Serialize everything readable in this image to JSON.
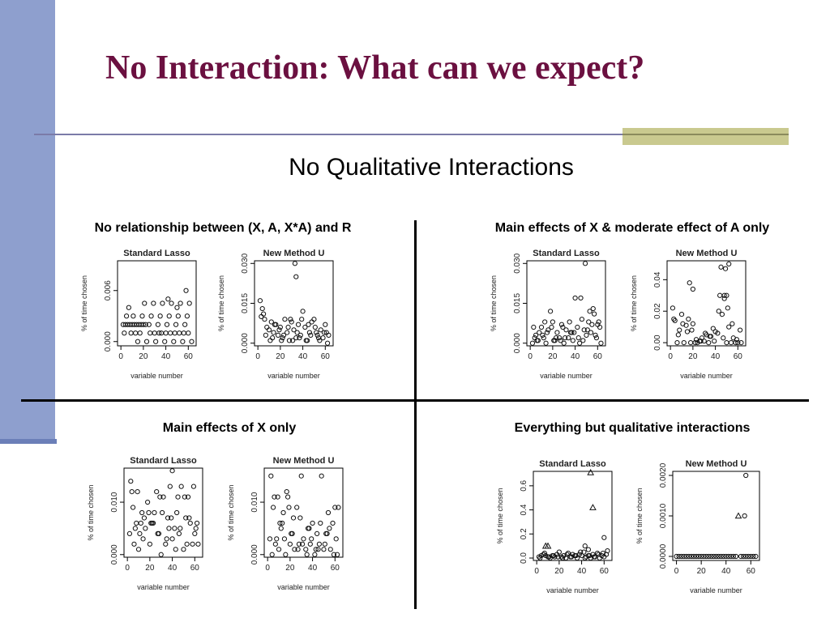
{
  "slide": {
    "title": "No Interaction: What can we expect?",
    "subtitle": "No Qualitative Interactions"
  },
  "colors": {
    "sidebar": "#8e9fce",
    "title": "#6b1040",
    "accent": "#c9c98f"
  },
  "quadrants": [
    {
      "title": "No relationship between (X, A, X*A) and R"
    },
    {
      "title": "Main effects of X & moderate effect of A only"
    },
    {
      "title": "Main effects of X only"
    },
    {
      "title": "Everything but qualitative interactions"
    }
  ],
  "chart_data": [
    {
      "type": "scatter",
      "title": "Standard Lasso",
      "xlabel": "variable number",
      "ylabel": "% of time chosen",
      "xlim": [
        -3,
        67
      ],
      "ylim": [
        -0.0005,
        0.0095
      ],
      "xticks": [
        0,
        20,
        40,
        60
      ],
      "yticks": [
        0.0,
        0.006
      ],
      "ytick_labels": [
        "0.000",
        "0.006"
      ],
      "x": [
        2,
        4,
        6,
        8,
        10,
        12,
        14,
        16,
        18,
        20,
        22,
        3,
        9,
        13,
        17,
        26,
        30,
        34,
        36,
        40,
        44,
        48,
        52,
        56,
        60,
        25,
        33,
        41,
        49,
        57,
        5,
        11,
        19,
        27,
        35,
        43,
        51,
        59,
        15,
        23,
        31,
        39,
        47,
        55,
        63,
        21,
        29,
        37,
        45,
        53,
        61,
        7,
        42,
        58,
        50
      ],
      "y": [
        0.002,
        0.002,
        0.002,
        0.002,
        0.002,
        0.002,
        0.002,
        0.002,
        0.002,
        0.002,
        0.002,
        0.001,
        0.001,
        0.001,
        0.001,
        0.001,
        0.001,
        0.001,
        0.001,
        0.001,
        0.001,
        0.001,
        0.001,
        0.001,
        0.001,
        0.002,
        0.002,
        0.002,
        0.002,
        0.002,
        0.003,
        0.003,
        0.003,
        0.003,
        0.003,
        0.003,
        0.003,
        0.003,
        0.0,
        0.0,
        0.0,
        0.0,
        0.0,
        0.0,
        0.0,
        0.0045,
        0.0045,
        0.0045,
        0.0045,
        0.0045,
        0.0045,
        0.004,
        0.005,
        0.006,
        0.004
      ]
    },
    {
      "type": "scatter",
      "title": "New Method U",
      "xlabel": "variable number",
      "ylabel": "% of time chosen",
      "xlim": [
        -3,
        67
      ],
      "ylim": [
        -0.001,
        0.031
      ],
      "xticks": [
        0,
        20,
        40,
        60
      ],
      "yticks": [
        0.0,
        0.015,
        0.03
      ],
      "ytick_labels": [
        "0.000",
        "0.015",
        "0.030"
      ],
      "x": [
        2,
        4,
        6,
        8,
        10,
        12,
        14,
        16,
        18,
        20,
        22,
        24,
        26,
        28,
        30,
        32,
        34,
        36,
        38,
        40,
        42,
        44,
        46,
        48,
        50,
        52,
        54,
        56,
        58,
        60,
        62,
        3,
        7,
        11,
        15,
        19,
        23,
        27,
        31,
        35,
        39,
        43,
        47,
        51,
        55,
        59,
        63,
        5,
        13,
        21,
        29,
        37,
        45,
        53,
        61,
        33,
        34
      ],
      "y": [
        0.016,
        0.013,
        0.009,
        0.006,
        0.005,
        0.008,
        0.004,
        0.007,
        0.003,
        0.006,
        0.002,
        0.009,
        0.004,
        0.001,
        0.008,
        0.005,
        0.002,
        0.007,
        0.003,
        0.012,
        0.006,
        0.001,
        0.004,
        0.008,
        0.009,
        0.004,
        0.002,
        0.005,
        0.002,
        0.007,
        0.0,
        0.01,
        0.003,
        0.001,
        0.007,
        0.005,
        0.003,
        0.006,
        0.001,
        0.004,
        0.009,
        0.001,
        0.003,
        0.006,
        0.001,
        0.004,
        0.003,
        0.011,
        0.002,
        0.001,
        0.009,
        0.002,
        0.007,
        0.003,
        0.004,
        0.03,
        0.025
      ]
    },
    {
      "type": "scatter",
      "title": "Standard Lasso",
      "xlabel": "variable number",
      "ylabel": "% of time chosen",
      "xlim": [
        -3,
        67
      ],
      "ylim": [
        -0.001,
        0.031
      ],
      "xticks": [
        0,
        20,
        40,
        60
      ],
      "yticks": [
        0.0,
        0.015,
        0.03
      ],
      "ytick_labels": [
        "0.000",
        "0.015",
        "0.030"
      ],
      "x": [
        2,
        4,
        6,
        8,
        10,
        12,
        14,
        16,
        18,
        20,
        22,
        24,
        26,
        28,
        30,
        32,
        34,
        36,
        38,
        40,
        42,
        44,
        46,
        48,
        50,
        52,
        54,
        56,
        58,
        60,
        62,
        3,
        7,
        11,
        15,
        19,
        23,
        27,
        31,
        35,
        39,
        43,
        47,
        51,
        55,
        59,
        63,
        5,
        13,
        21,
        29,
        37,
        45,
        53,
        61,
        49,
        57
      ],
      "y": [
        0.0,
        0.002,
        0.001,
        0.004,
        0.006,
        0.002,
        0.0,
        0.005,
        0.012,
        0.008,
        0.001,
        0.004,
        0.002,
        0.007,
        0.0,
        0.005,
        0.002,
        0.004,
        0.001,
        0.017,
        0.006,
        0.0,
        0.009,
        0.005,
        0.003,
        0.008,
        0.004,
        0.013,
        0.003,
        0.007,
        0.006,
        0.006,
        0.001,
        0.003,
        0.004,
        0.006,
        0.002,
        0.001,
        0.002,
        0.008,
        0.004,
        0.002,
        0.001,
        0.005,
        0.007,
        0.002,
        0.0,
        0.003,
        0.008,
        0.001,
        0.006,
        0.004,
        0.017,
        0.012,
        0.008,
        0.03,
        0.011
      ]
    },
    {
      "type": "scatter",
      "title": "New Method U",
      "xlabel": "variable number",
      "ylabel": "% of time chosen",
      "xlim": [
        -3,
        67
      ],
      "ylim": [
        -0.002,
        0.052
      ],
      "xticks": [
        0,
        20,
        40,
        60
      ],
      "yticks": [
        0.0,
        0.02,
        0.04
      ],
      "ytick_labels": [
        "0.00",
        "0.02",
        "0.04"
      ],
      "x": [
        2,
        4,
        6,
        8,
        10,
        12,
        14,
        16,
        18,
        20,
        22,
        24,
        26,
        28,
        30,
        32,
        34,
        36,
        38,
        40,
        42,
        44,
        46,
        48,
        50,
        52,
        54,
        56,
        58,
        60,
        62,
        3,
        7,
        11,
        15,
        19,
        23,
        27,
        31,
        35,
        39,
        43,
        47,
        51,
        55,
        59,
        63,
        17,
        20,
        45,
        49,
        52,
        48,
        50
      ],
      "y": [
        0.022,
        0.014,
        0.0,
        0.008,
        0.018,
        0.0,
        0.011,
        0.015,
        0.0,
        0.012,
        0.0,
        0.0,
        0.001,
        0.003,
        0.001,
        0.005,
        0.0,
        0.004,
        0.009,
        0.007,
        0.006,
        0.03,
        0.018,
        0.03,
        0.0,
        0.01,
        0.0,
        0.003,
        0.0,
        0.0,
        0.008,
        0.015,
        0.005,
        0.012,
        0.007,
        0.008,
        0.002,
        0.001,
        0.006,
        0.004,
        0.001,
        0.02,
        0.003,
        0.022,
        0.012,
        0.002,
        0.0,
        0.038,
        0.034,
        0.048,
        0.047,
        0.05,
        0.028,
        0.03
      ]
    },
    {
      "type": "scatter",
      "title": "Standard Lasso",
      "xlabel": "variable number",
      "ylabel": "% of time chosen",
      "xlim": [
        -3,
        67
      ],
      "ylim": [
        -0.0005,
        0.0165
      ],
      "xticks": [
        0,
        20,
        40,
        60
      ],
      "yticks": [
        0.0,
        0.01
      ],
      "ytick_labels": [
        "0.000",
        "0.010"
      ],
      "x": [
        2,
        4,
        6,
        8,
        10,
        12,
        14,
        16,
        18,
        20,
        22,
        24,
        26,
        28,
        30,
        32,
        34,
        36,
        38,
        40,
        42,
        44,
        46,
        48,
        50,
        52,
        54,
        56,
        58,
        60,
        62,
        3,
        7,
        11,
        15,
        19,
        23,
        27,
        31,
        35,
        39,
        43,
        47,
        51,
        55,
        59,
        63,
        5,
        9,
        13,
        21,
        29,
        37,
        45,
        53,
        61,
        40
      ],
      "y": [
        0.004,
        0.012,
        0.002,
        0.006,
        0.001,
        0.006,
        0.003,
        0.005,
        0.01,
        0.002,
        0.006,
        0.008,
        0.012,
        0.004,
        0.0,
        0.011,
        0.002,
        0.007,
        0.013,
        0.003,
        0.005,
        0.008,
        0.004,
        0.013,
        0.001,
        0.007,
        0.011,
        0.006,
        0.002,
        0.004,
        0.006,
        0.014,
        0.005,
        0.004,
        0.007,
        0.008,
        0.006,
        0.004,
        0.008,
        0.003,
        0.007,
        0.001,
        0.005,
        0.011,
        0.007,
        0.013,
        0.002,
        0.009,
        0.012,
        0.008,
        0.006,
        0.011,
        0.005,
        0.011,
        0.002,
        0.005,
        0.016
      ],
      "markers": "circle"
    },
    {
      "type": "scatter",
      "title": "New Method U",
      "xlabel": "variable number",
      "ylabel": "% of time chosen",
      "xlim": [
        -3,
        67
      ],
      "ylim": [
        -0.0005,
        0.0165
      ],
      "xticks": [
        0,
        20,
        40,
        60
      ],
      "yticks": [
        0.0,
        0.01
      ],
      "ytick_labels": [
        "0.000",
        "0.010"
      ],
      "x": [
        2,
        4,
        6,
        8,
        10,
        12,
        14,
        16,
        18,
        20,
        22,
        24,
        26,
        28,
        30,
        32,
        34,
        36,
        38,
        40,
        42,
        44,
        46,
        48,
        50,
        52,
        54,
        56,
        58,
        60,
        62,
        3,
        7,
        11,
        15,
        19,
        23,
        27,
        31,
        35,
        39,
        43,
        47,
        51,
        55,
        59,
        63,
        5,
        9,
        13,
        21,
        29,
        37,
        45,
        53,
        61,
        17
      ],
      "y": [
        0.003,
        0.0,
        0.011,
        0.003,
        0.001,
        0.005,
        0.008,
        0.0,
        0.011,
        0.002,
        0.004,
        0.001,
        0.009,
        0.002,
        0.015,
        0.003,
        0.001,
        0.005,
        0.002,
        0.006,
        0.0,
        0.004,
        0.002,
        0.015,
        0.001,
        0.004,
        0.008,
        0.001,
        0.006,
        0.009,
        0.0,
        0.015,
        0.002,
        0.006,
        0.003,
        0.009,
        0.007,
        0.001,
        0.002,
        0.0,
        0.003,
        0.001,
        0.006,
        0.002,
        0.005,
        0.0,
        0.009,
        0.009,
        0.011,
        0.006,
        0.004,
        0.007,
        0.005,
        0.001,
        0.004,
        0.003,
        0.012
      ]
    },
    {
      "type": "scatter",
      "title": "Standard Lasso",
      "xlabel": "variable number",
      "ylabel": "% of time chosen",
      "xlim": [
        -3,
        67
      ],
      "ylim": [
        -0.02,
        0.72
      ],
      "xticks": [
        0,
        20,
        40,
        60
      ],
      "yticks": [
        0.0,
        0.2,
        0.4,
        0.6
      ],
      "ytick_labels": [
        "0.0",
        "0.2",
        "0.4",
        "0.6"
      ],
      "x": [
        2,
        4,
        6,
        8,
        10,
        12,
        14,
        16,
        18,
        20,
        22,
        24,
        26,
        28,
        30,
        32,
        34,
        36,
        38,
        40,
        42,
        44,
        46,
        48,
        50,
        52,
        54,
        56,
        58,
        60,
        62,
        3,
        7,
        11,
        15,
        19,
        23,
        27,
        31,
        35,
        39,
        43,
        47,
        51,
        55,
        59,
        63,
        43,
        46,
        60
      ],
      "y": [
        0.01,
        0.02,
        0.03,
        0.02,
        0.01,
        0.0,
        0.02,
        0.01,
        0.03,
        0.05,
        0.01,
        0.02,
        0.0,
        0.04,
        0.01,
        0.03,
        0.02,
        0.0,
        0.03,
        0.02,
        0.05,
        0.01,
        0.02,
        0.0,
        0.03,
        0.01,
        0.04,
        0.0,
        0.02,
        0.01,
        0.03,
        0.0,
        0.04,
        0.01,
        0.02,
        0.01,
        0.0,
        0.03,
        0.01,
        0.02,
        0.05,
        0.0,
        0.02,
        0.01,
        0.03,
        0.04,
        0.06,
        0.1,
        0.07,
        0.17
      ],
      "triangles": {
        "x": [
          8,
          10,
          48,
          50
        ],
        "y": [
          0.1,
          0.1,
          0.71,
          0.42
        ]
      }
    },
    {
      "type": "scatter",
      "title": "New Method U",
      "xlabel": "variable number",
      "ylabel": "% of time chosen",
      "xlim": [
        -3,
        67
      ],
      "ylim": [
        -0.0001,
        0.0021
      ],
      "xticks": [
        0,
        20,
        40,
        60
      ],
      "yticks": [
        0.0,
        0.001,
        0.002
      ],
      "ytick_labels": [
        "0.0000",
        "0.0010",
        "0.0020"
      ],
      "x": [
        0,
        2,
        4,
        6,
        8,
        10,
        12,
        14,
        16,
        18,
        20,
        22,
        24,
        26,
        28,
        30,
        32,
        34,
        36,
        38,
        40,
        42,
        44,
        46,
        48,
        52,
        54,
        56,
        58,
        60,
        62,
        64,
        56,
        55
      ],
      "y": [
        0,
        0,
        0,
        0,
        0,
        0,
        0,
        0,
        0,
        0,
        0,
        0,
        0,
        0,
        0,
        0,
        0,
        0,
        0,
        0,
        0,
        0,
        0,
        0,
        0,
        0,
        0,
        0,
        0,
        0,
        0,
        0,
        0.002,
        0.001
      ],
      "triangles": {
        "x": [
          50
        ],
        "y": [
          0.001
        ]
      }
    }
  ]
}
